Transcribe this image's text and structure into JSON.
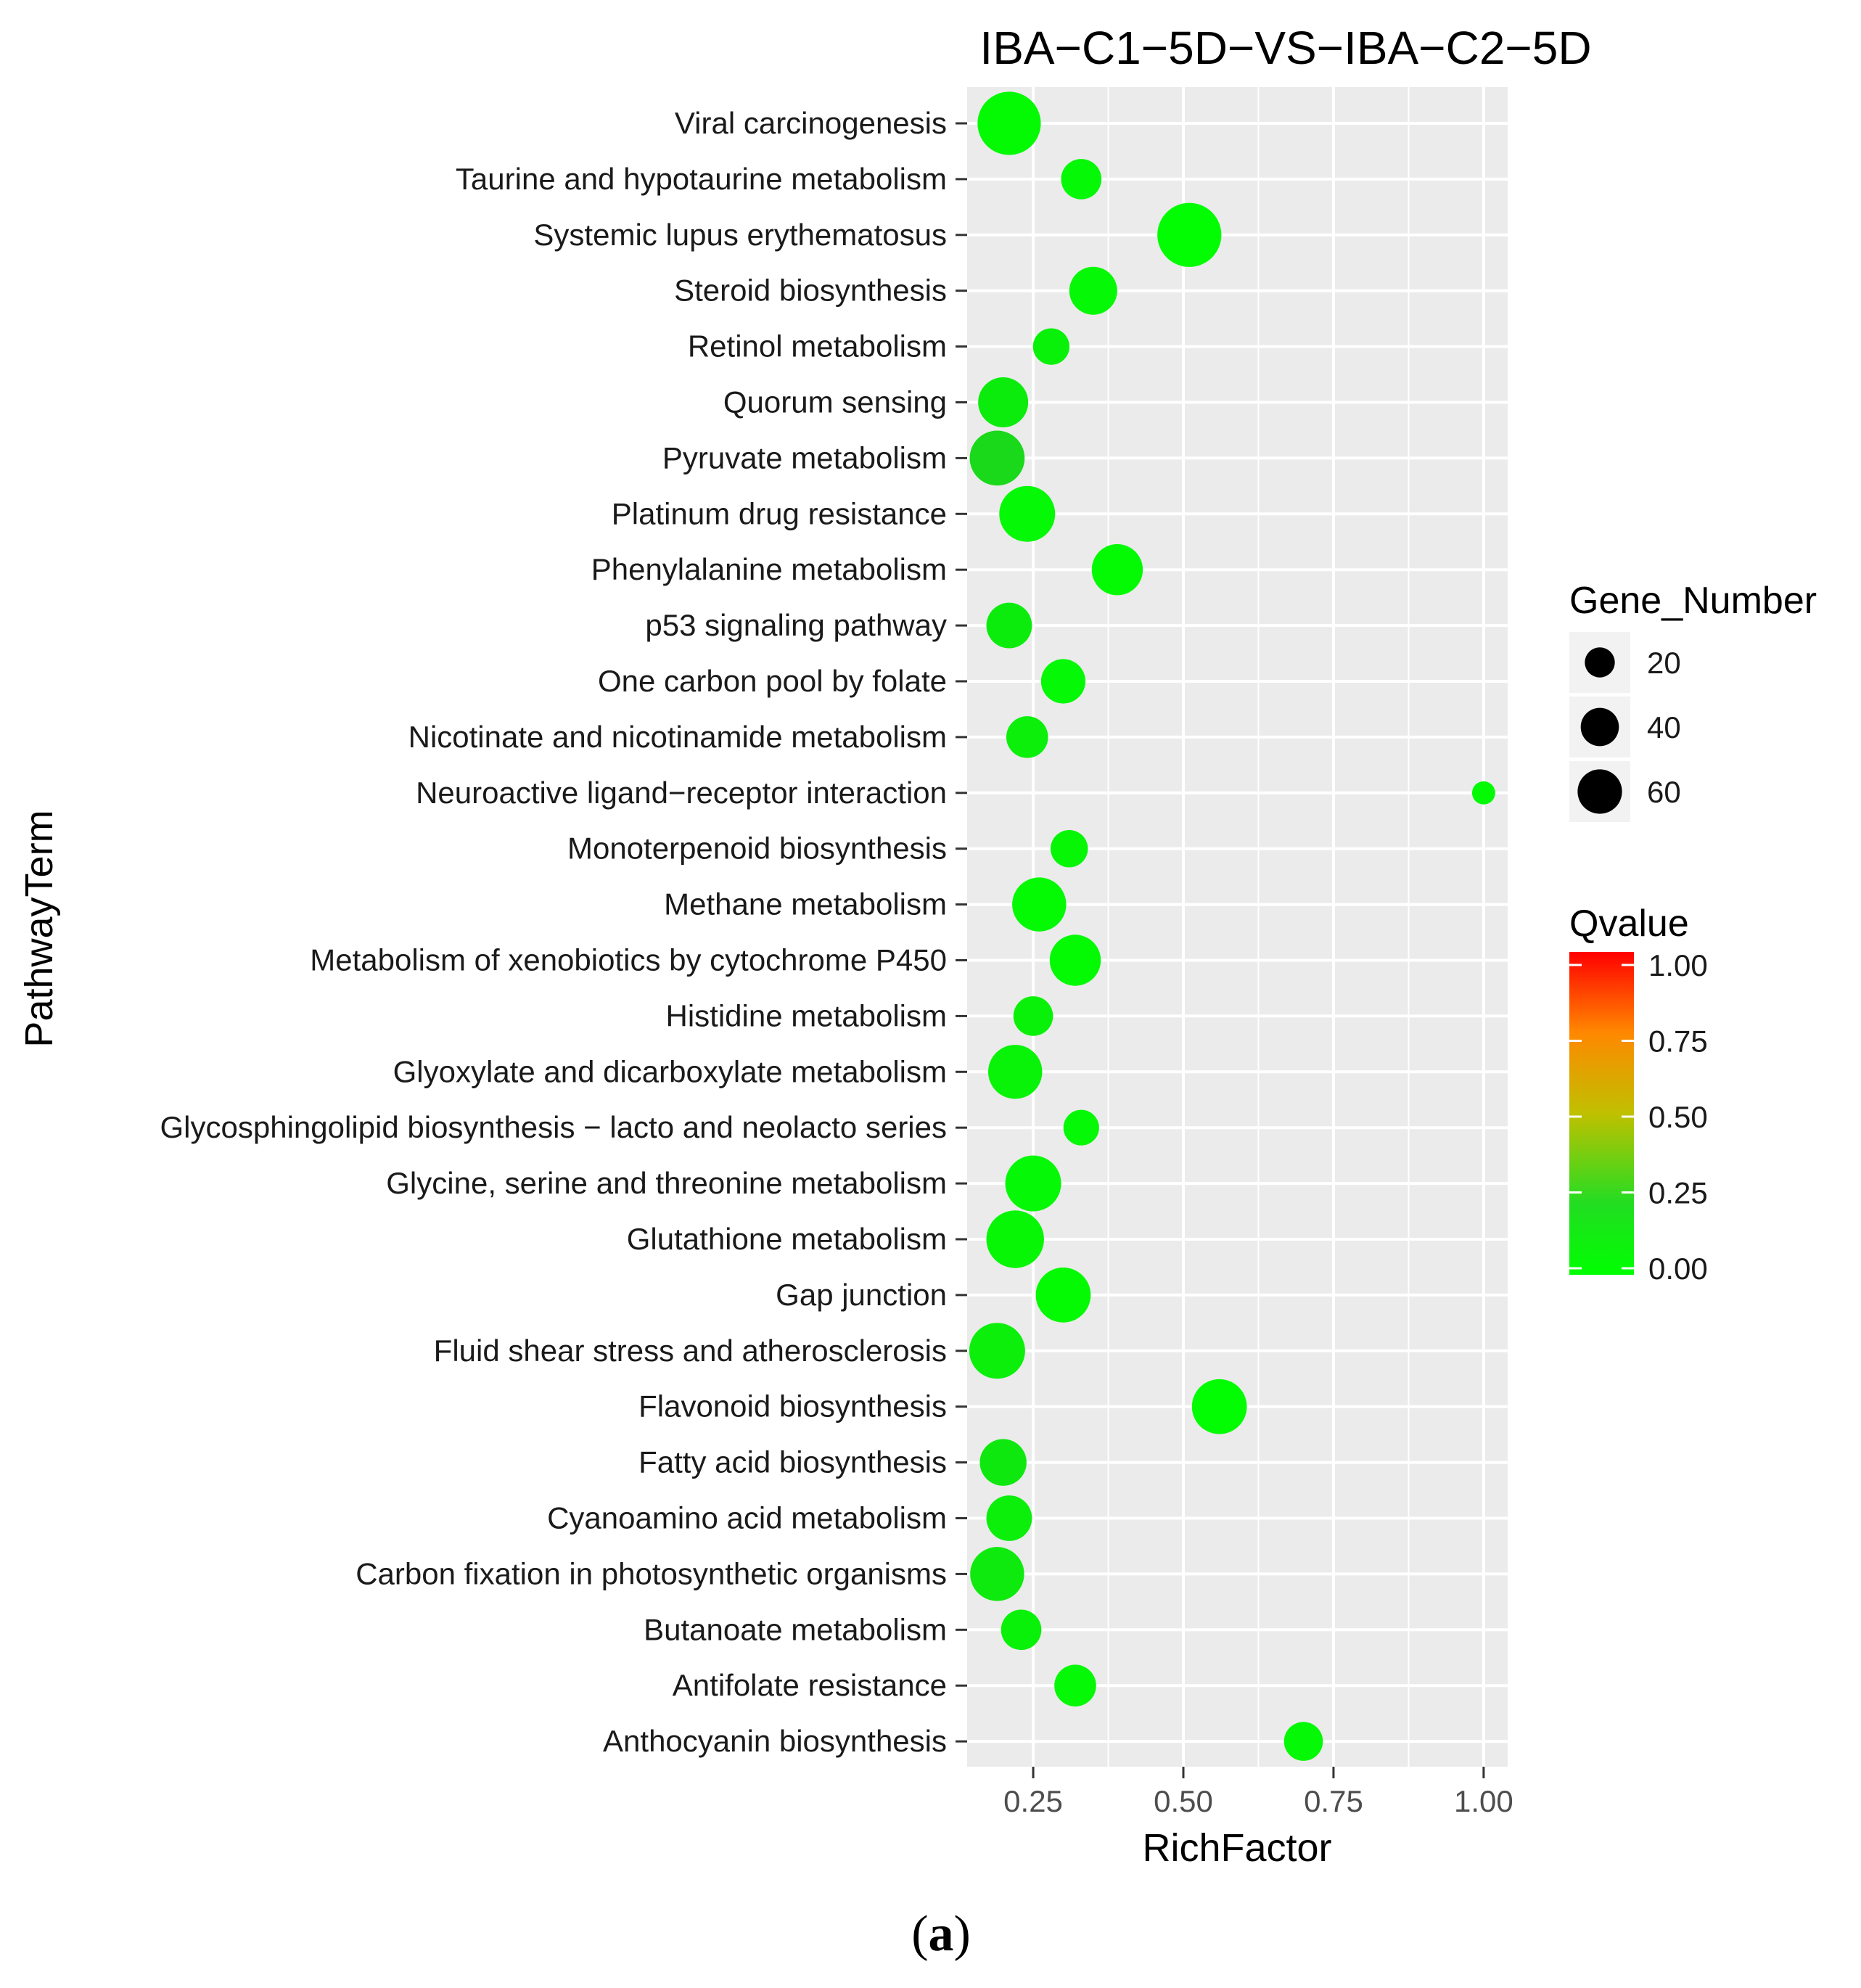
{
  "figure": {
    "panel_label": {
      "open": "(",
      "letter": "a",
      "close": ")"
    }
  },
  "colors": {
    "panel_bg": "#ebebeb",
    "grid": "#ffffff",
    "q_low": "#00ff00",
    "q_mid_green": "#22cc22",
    "q_mid": "#ffa500",
    "q_high": "#ff0000"
  },
  "chart_data": {
    "type": "scatter",
    "title": "IBA−C1−5D−VS−IBA−C2−5D",
    "xlabel": "RichFactor",
    "ylabel": "PathwayTerm",
    "xlim": [
      0.14,
      1.04
    ],
    "x_ticks": [
      0.25,
      0.5,
      0.75,
      1.0
    ],
    "x_tick_labels": [
      "0.25",
      "0.50",
      "0.75",
      "1.00"
    ],
    "grid": true,
    "legend_position": "right",
    "size_legend": {
      "title": "Gene_Number",
      "values": [
        20,
        40,
        60
      ],
      "labels": [
        "20",
        "40",
        "60"
      ]
    },
    "color_legend": {
      "title": "Qvalue",
      "ticks": [
        1.0,
        0.75,
        0.5,
        0.25,
        0.0
      ],
      "labels": [
        "1.00",
        "0.75",
        "0.50",
        "0.25",
        "0.00"
      ]
    },
    "categories": [
      "Viral carcinogenesis",
      "Taurine and hypotaurine metabolism",
      "Systemic lupus erythematosus",
      "Steroid biosynthesis",
      "Retinol metabolism",
      "Quorum sensing",
      "Pyruvate metabolism",
      "Platinum drug resistance",
      "Phenylalanine metabolism",
      "p53 signaling pathway",
      "One carbon pool by folate",
      "Nicotinate and nicotinamide metabolism",
      "Neuroactive ligand−receptor interaction",
      "Monoterpenoid biosynthesis",
      "Methane metabolism",
      "Metabolism of xenobiotics by cytochrome P450",
      "Histidine metabolism",
      "Glyoxylate and dicarboxylate metabolism",
      "Glycosphingolipid biosynthesis − lacto and neolacto series",
      "Glycine, serine and threonine metabolism",
      "Glutathione metabolism",
      "Gap junction",
      "Fluid shear stress and atherosclerosis",
      "Flavonoid biosynthesis",
      "Fatty acid biosynthesis",
      "Cyanoamino acid metabolism",
      "Carbon fixation in photosynthetic organisms",
      "Butanoate metabolism",
      "Antifolate resistance",
      "Anthocyanin biosynthesis"
    ],
    "points": [
      {
        "term": "Viral carcinogenesis",
        "rich_factor": 0.21,
        "gene_number": 64,
        "qvalue": 0.02
      },
      {
        "term": "Taurine and hypotaurine metabolism",
        "rich_factor": 0.33,
        "gene_number": 18,
        "qvalue": 0.03
      },
      {
        "term": "Systemic lupus erythematosus",
        "rich_factor": 0.51,
        "gene_number": 66,
        "qvalue": 0.01
      },
      {
        "term": "Steroid biosynthesis",
        "rich_factor": 0.35,
        "gene_number": 30,
        "qvalue": 0.03
      },
      {
        "term": "Retinol metabolism",
        "rich_factor": 0.28,
        "gene_number": 13,
        "qvalue": 0.06
      },
      {
        "term": "Quorum sensing",
        "rich_factor": 0.2,
        "gene_number": 34,
        "qvalue": 0.08
      },
      {
        "term": "Pyruvate metabolism",
        "rich_factor": 0.19,
        "gene_number": 44,
        "qvalue": 0.17
      },
      {
        "term": "Platinum drug resistance",
        "rich_factor": 0.24,
        "gene_number": 46,
        "qvalue": 0.03
      },
      {
        "term": "Phenylalanine metabolism",
        "rich_factor": 0.39,
        "gene_number": 36,
        "qvalue": 0.02
      },
      {
        "term": "p53 signaling pathway",
        "rich_factor": 0.21,
        "gene_number": 26,
        "qvalue": 0.08
      },
      {
        "term": "One carbon pool by folate",
        "rich_factor": 0.3,
        "gene_number": 24,
        "qvalue": 0.03
      },
      {
        "term": "Nicotinate and nicotinamide metabolism",
        "rich_factor": 0.24,
        "gene_number": 20,
        "qvalue": 0.07
      },
      {
        "term": "Neuroactive ligand−receptor interaction",
        "rich_factor": 1.0,
        "gene_number": 2,
        "qvalue": 0.02
      },
      {
        "term": "Monoterpenoid biosynthesis",
        "rich_factor": 0.31,
        "gene_number": 14,
        "qvalue": 0.04
      },
      {
        "term": "Methane metabolism",
        "rich_factor": 0.26,
        "gene_number": 42,
        "qvalue": 0.02
      },
      {
        "term": "Metabolism of xenobiotics by cytochrome P450",
        "rich_factor": 0.32,
        "gene_number": 36,
        "qvalue": 0.02
      },
      {
        "term": "Histidine metabolism",
        "rich_factor": 0.25,
        "gene_number": 17,
        "qvalue": 0.06
      },
      {
        "term": "Glyoxylate and dicarboxylate metabolism",
        "rich_factor": 0.22,
        "gene_number": 42,
        "qvalue": 0.05
      },
      {
        "term": "Glycosphingolipid biosynthesis − lacto and neolacto series",
        "rich_factor": 0.33,
        "gene_number": 12,
        "qvalue": 0.03
      },
      {
        "term": "Glycine, serine and threonine metabolism",
        "rich_factor": 0.25,
        "gene_number": 46,
        "qvalue": 0.03
      },
      {
        "term": "Glutathione metabolism",
        "rich_factor": 0.22,
        "gene_number": 50,
        "qvalue": 0.04
      },
      {
        "term": "Gap junction",
        "rich_factor": 0.3,
        "gene_number": 44,
        "qvalue": 0.02
      },
      {
        "term": "Fluid shear stress and atherosclerosis",
        "rich_factor": 0.19,
        "gene_number": 46,
        "qvalue": 0.07
      },
      {
        "term": "Flavonoid biosynthesis",
        "rich_factor": 0.56,
        "gene_number": 44,
        "qvalue": 0.01
      },
      {
        "term": "Fatty acid biosynthesis",
        "rich_factor": 0.2,
        "gene_number": 28,
        "qvalue": 0.1
      },
      {
        "term": "Cyanoamino acid metabolism",
        "rich_factor": 0.21,
        "gene_number": 26,
        "qvalue": 0.07
      },
      {
        "term": "Carbon fixation in photosynthetic organisms",
        "rich_factor": 0.19,
        "gene_number": 42,
        "qvalue": 0.09
      },
      {
        "term": "Butanoate metabolism",
        "rich_factor": 0.23,
        "gene_number": 18,
        "qvalue": 0.06
      },
      {
        "term": "Antifolate resistance",
        "rich_factor": 0.32,
        "gene_number": 20,
        "qvalue": 0.03
      },
      {
        "term": "Anthocyanin biosynthesis",
        "rich_factor": 0.7,
        "gene_number": 16,
        "qvalue": 0.03
      }
    ]
  }
}
